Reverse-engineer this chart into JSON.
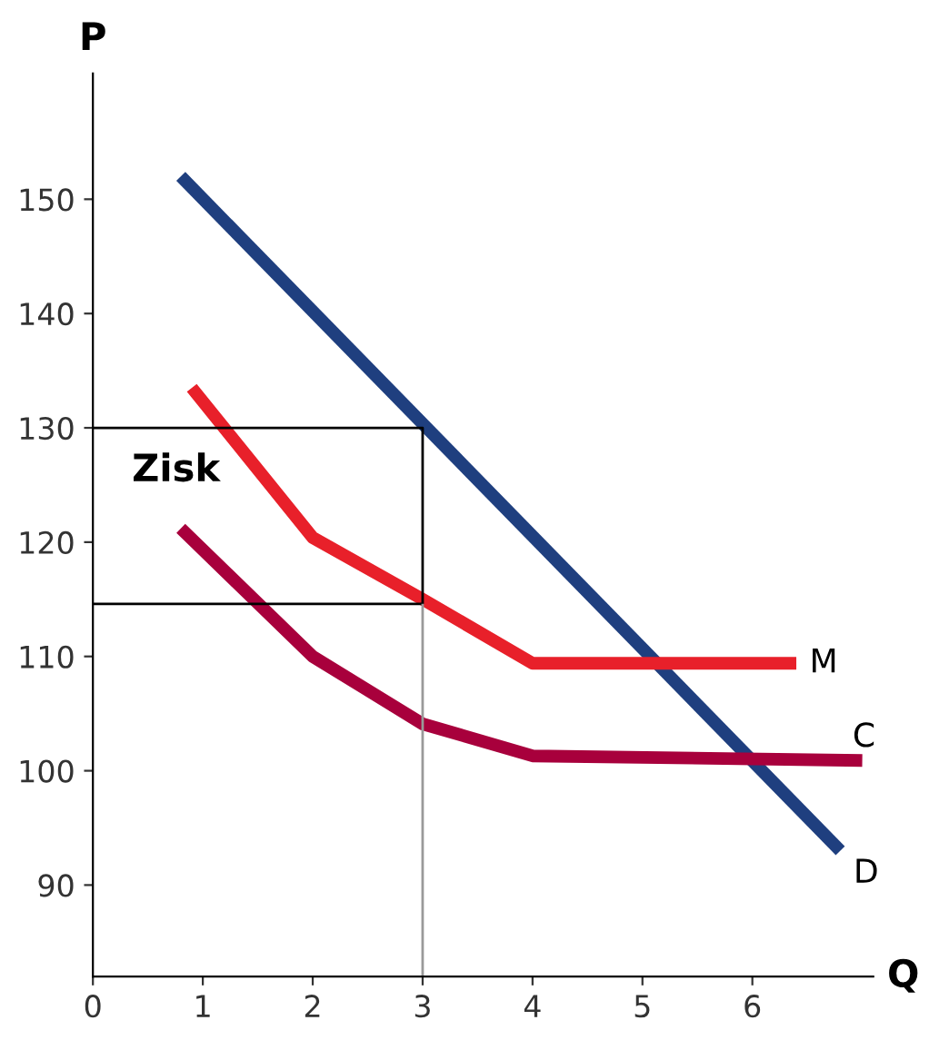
{
  "chart_data": {
    "type": "line",
    "xlabel": "Q",
    "ylabel": "P",
    "xlim": [
      0,
      7.1
    ],
    "ylim": [
      82,
      161
    ],
    "xticks": [
      0,
      1,
      2,
      3,
      4,
      5,
      6
    ],
    "yticks": [
      90,
      100,
      110,
      120,
      130,
      140,
      150
    ],
    "grid": false,
    "legend": false,
    "marker": "none",
    "line_style": "solid",
    "series": [
      {
        "name": "D",
        "color": "#1f3f7f",
        "x": [
          0.8,
          6.8
        ],
        "values": [
          152,
          93
        ]
      },
      {
        "name": "M",
        "color": "#e8202a",
        "x": [
          0.9,
          2,
          3,
          4,
          6.4
        ],
        "values": [
          133.5,
          120.4,
          115,
          109.4,
          109.4
        ]
      },
      {
        "name": "C",
        "color": "#a8003c",
        "x": [
          0.8,
          2,
          3,
          4,
          7
        ],
        "values": [
          121.2,
          110,
          104.1,
          101.3,
          100.9
        ]
      },
      {
        "color": "#000000",
        "x": [
          0,
          3,
          3,
          0
        ],
        "values": [
          130,
          130,
          114.6,
          114.6
        ]
      },
      {
        "color": "#999999",
        "x": [
          3,
          3
        ],
        "values": [
          82,
          114.6
        ]
      }
    ],
    "annotations": [
      "Zisk"
    ]
  }
}
